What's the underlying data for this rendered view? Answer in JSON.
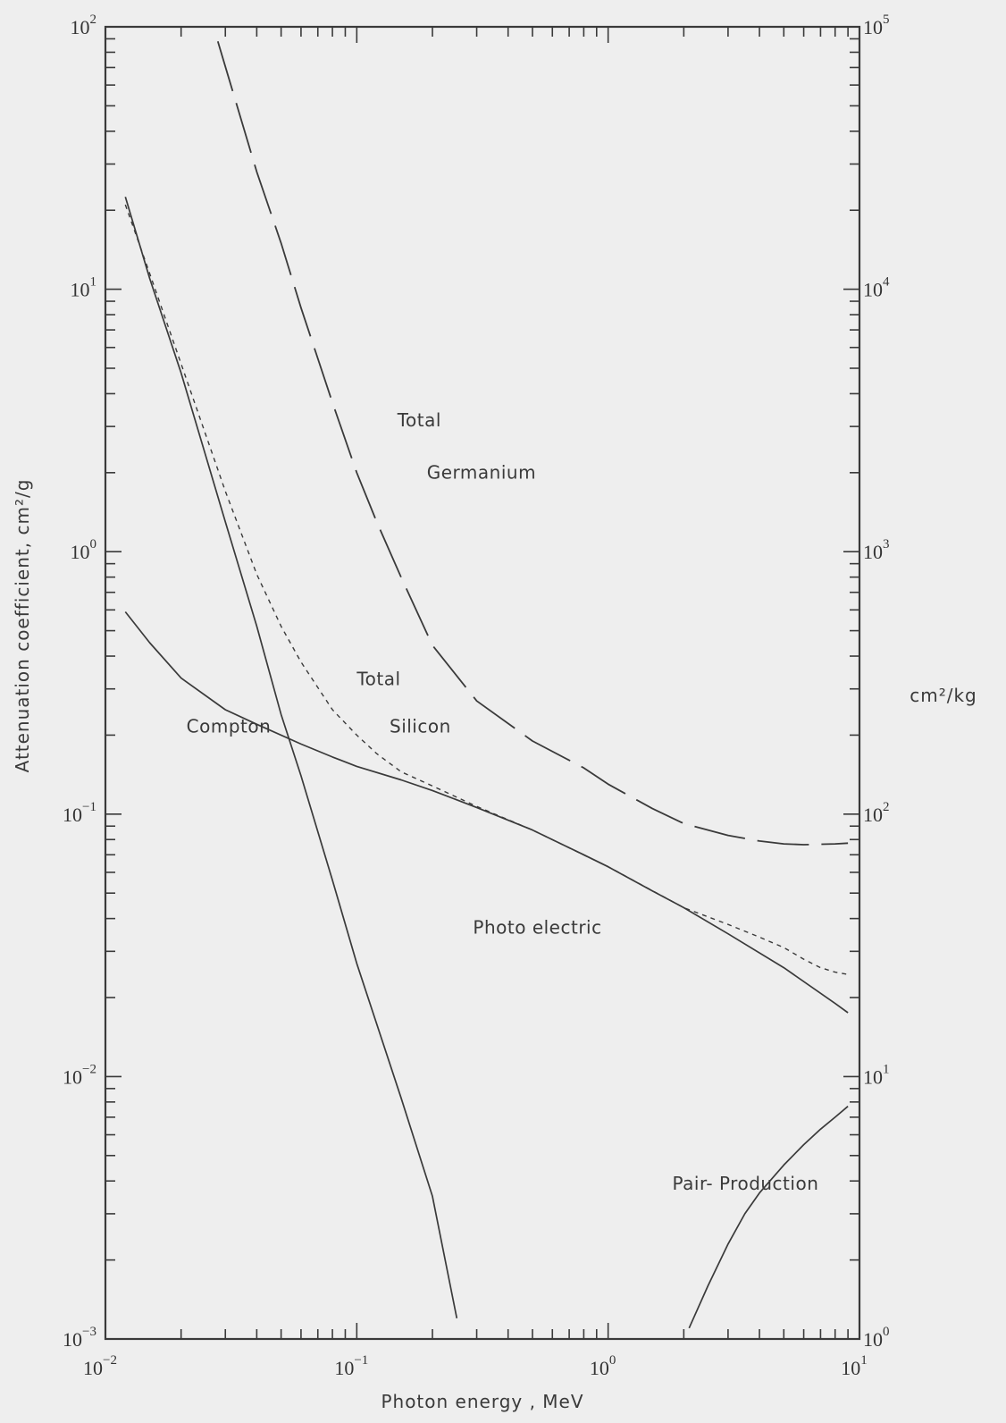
{
  "chart_data": {
    "type": "line",
    "xlabel": "Photon energy , MeV",
    "ylabel": "Attenuation coefficient, cm²/g",
    "y2label": "cm²/kg",
    "xscale": "log",
    "yscale": "log",
    "xlim": [
      0.01,
      10
    ],
    "ylim": [
      0.001,
      100
    ],
    "y2lim": [
      1,
      100000
    ],
    "x_ticks": [
      "10^-2",
      "10^-1",
      "10^0",
      "10^1"
    ],
    "y_ticks": [
      "10^-3",
      "10^-2",
      "10^-1",
      "10^0",
      "10^1",
      "10^2"
    ],
    "y2_ticks": [
      "10^0",
      "10^1",
      "10^2",
      "10^3",
      "10^4",
      "10^5"
    ],
    "series": [
      {
        "style": "solid",
        "points": [
          [
            0.012,
            22.5
          ],
          [
            0.015,
            11
          ],
          [
            0.02,
            4.8
          ],
          [
            0.03,
            1.3
          ],
          [
            0.04,
            0.52
          ],
          [
            0.05,
            0.24
          ],
          [
            0.06,
            0.14
          ],
          [
            0.08,
            0.056
          ],
          [
            0.1,
            0.027
          ],
          [
            0.15,
            0.0083
          ],
          [
            0.2,
            0.0035
          ],
          [
            0.25,
            0.0012
          ]
        ]
      },
      {
        "style": "solid",
        "points": [
          [
            0.012,
            0.59
          ],
          [
            0.015,
            0.45
          ],
          [
            0.02,
            0.33
          ],
          [
            0.03,
            0.25
          ],
          [
            0.04,
            0.22
          ],
          [
            0.06,
            0.185
          ],
          [
            0.08,
            0.165
          ],
          [
            0.1,
            0.152
          ],
          [
            0.15,
            0.135
          ],
          [
            0.2,
            0.123
          ],
          [
            0.3,
            0.106
          ],
          [
            0.5,
            0.087
          ],
          [
            0.8,
            0.07
          ],
          [
            1.0,
            0.063
          ],
          [
            1.5,
            0.051
          ],
          [
            2.0,
            0.044
          ],
          [
            3.0,
            0.035
          ],
          [
            5.0,
            0.026
          ],
          [
            8.0,
            0.019
          ],
          [
            9.0,
            0.0175
          ]
        ]
      },
      {
        "style": "dotted",
        "points": [
          [
            0.012,
            21
          ],
          [
            0.015,
            11.5
          ],
          [
            0.02,
            5.2
          ],
          [
            0.03,
            1.7
          ],
          [
            0.04,
            0.82
          ],
          [
            0.05,
            0.52
          ],
          [
            0.06,
            0.38
          ],
          [
            0.08,
            0.25
          ],
          [
            0.1,
            0.2
          ],
          [
            0.12,
            0.17
          ],
          [
            0.15,
            0.145
          ],
          [
            0.2,
            0.128
          ],
          [
            0.3,
            0.107
          ],
          [
            0.5,
            0.087
          ],
          [
            1.0,
            0.063
          ],
          [
            2.0,
            0.044
          ],
          [
            3.0,
            0.038
          ],
          [
            4.0,
            0.034
          ],
          [
            5.0,
            0.031
          ],
          [
            6.0,
            0.028
          ],
          [
            7.0,
            0.026
          ],
          [
            8.0,
            0.025
          ],
          [
            9.0,
            0.0245
          ]
        ]
      },
      {
        "style": "long-dash",
        "points": [
          [
            0.028,
            88
          ],
          [
            0.04,
            28
          ],
          [
            0.05,
            15
          ],
          [
            0.06,
            8.5
          ],
          [
            0.08,
            3.7
          ],
          [
            0.1,
            2.0
          ],
          [
            0.12,
            1.3
          ],
          [
            0.15,
            0.8
          ],
          [
            0.2,
            0.44
          ],
          [
            0.3,
            0.27
          ],
          [
            0.5,
            0.19
          ],
          [
            0.8,
            0.15
          ],
          [
            1.0,
            0.13
          ],
          [
            1.5,
            0.105
          ],
          [
            2.0,
            0.092
          ],
          [
            3.0,
            0.083
          ],
          [
            4.0,
            0.079
          ],
          [
            5.0,
            0.077
          ],
          [
            6.0,
            0.0765
          ],
          [
            8.0,
            0.077
          ],
          [
            9.0,
            0.0775
          ]
        ]
      },
      {
        "style": "solid",
        "points": [
          [
            2.1,
            0.0011
          ],
          [
            2.5,
            0.0016
          ],
          [
            3.0,
            0.0023
          ],
          [
            3.5,
            0.003
          ],
          [
            4.0,
            0.0036
          ],
          [
            5.0,
            0.0046
          ],
          [
            6.0,
            0.0055
          ],
          [
            7.0,
            0.0063
          ],
          [
            8.0,
            0.007
          ],
          [
            9.0,
            0.0077
          ]
        ]
      }
    ],
    "annotations": [
      {
        "text": "Total",
        "x": 0.145,
        "y": 3.0
      },
      {
        "text": "Germanium",
        "x": 0.19,
        "y": 1.9
      },
      {
        "text": "Total",
        "x": 0.1,
        "y": 0.31
      },
      {
        "text": "Silicon",
        "x": 0.135,
        "y": 0.205
      },
      {
        "text": "Compton",
        "x": 0.021,
        "y": 0.205
      },
      {
        "text": "Photo electric",
        "x": 0.29,
        "y": 0.035
      },
      {
        "text": "Pair- Production",
        "x": 1.8,
        "y": 0.0037
      }
    ],
    "grid": false
  }
}
